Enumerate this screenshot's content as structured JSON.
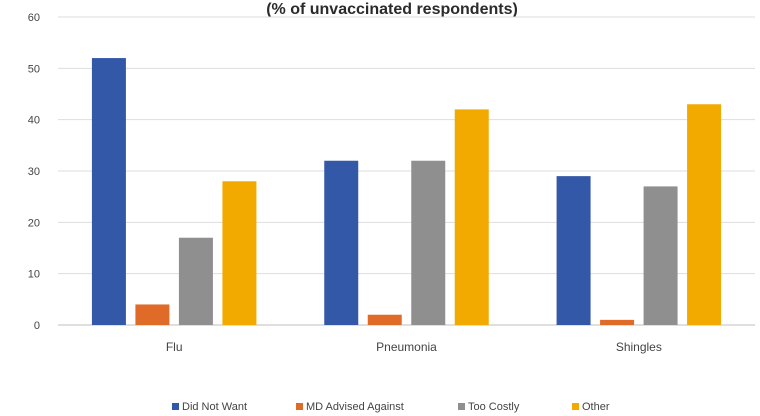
{
  "chart_data": {
    "type": "bar",
    "title": "(% of unvaccinated respondents)",
    "categories": [
      "Flu",
      "Pneumonia",
      "Shingles"
    ],
    "ylim": [
      0,
      60
    ],
    "yticks": [
      0,
      10,
      20,
      30,
      40,
      50,
      60
    ],
    "grid": true,
    "legend_position": "bottom",
    "series": [
      {
        "name": "Did Not Want",
        "color": "#3358a8",
        "values": [
          52,
          32,
          29
        ]
      },
      {
        "name": "MD Advised Against",
        "color": "#e06a28",
        "values": [
          4,
          2,
          1
        ]
      },
      {
        "name": "Too Costly",
        "color": "#8f8f8f",
        "values": [
          17,
          32,
          27
        ]
      },
      {
        "name": "Other",
        "color": "#f2a900",
        "values": [
          28,
          42,
          43
        ]
      }
    ]
  }
}
